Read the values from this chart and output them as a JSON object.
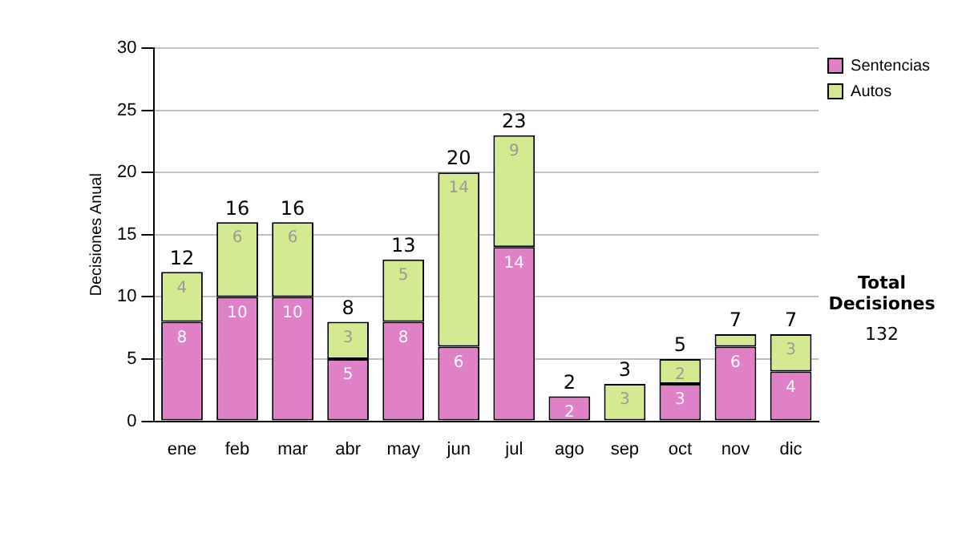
{
  "chart_data": {
    "type": "bar",
    "stacked": true,
    "ylabel": "Decisiones Anual",
    "categories": [
      "ene",
      "feb",
      "mar",
      "abr",
      "may",
      "jun",
      "jul",
      "ago",
      "sep",
      "oct",
      "nov",
      "dic"
    ],
    "series": [
      {
        "name": "Sentencias",
        "color": "#e080c8",
        "values": [
          8,
          10,
          10,
          5,
          8,
          6,
          14,
          2,
          0,
          3,
          6,
          4
        ],
        "value_labels": [
          "8",
          "10",
          "10",
          "5",
          "8",
          "6",
          "14",
          "2",
          null,
          "3",
          "6",
          "4"
        ]
      },
      {
        "name": "Autos",
        "color": "#d4ea90",
        "values": [
          4,
          6,
          6,
          3,
          5,
          14,
          9,
          0,
          3,
          2,
          1,
          3
        ],
        "value_labels": [
          "4",
          "6",
          "6",
          "3",
          "5",
          "14",
          "9",
          null,
          "3",
          "2",
          null,
          "3"
        ]
      }
    ],
    "totals": [
      "12",
      "16",
      "16",
      "8",
      "13",
      "20",
      "23",
      "2",
      "3",
      "5",
      "7",
      "7"
    ],
    "ylim": [
      0,
      30
    ],
    "yticks": [
      0,
      5,
      10,
      15,
      20,
      25,
      30
    ],
    "grid": "y",
    "legend": "right",
    "annotations": [
      "Total Decisiones",
      "132"
    ]
  }
}
